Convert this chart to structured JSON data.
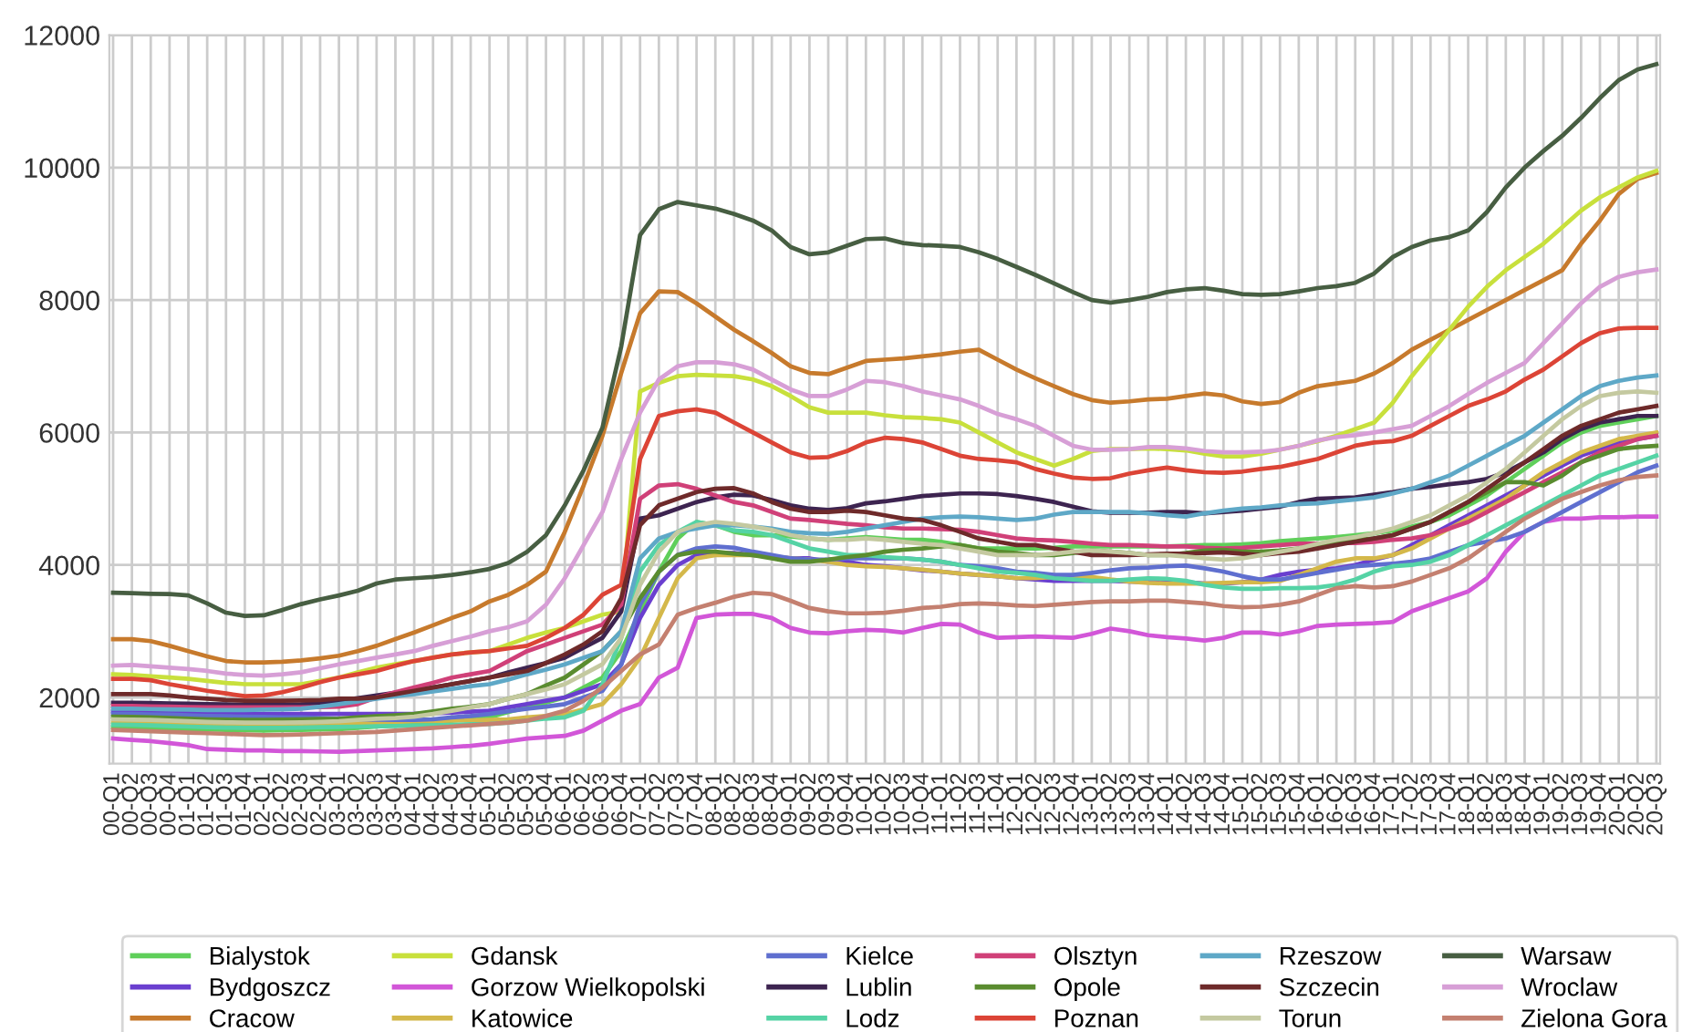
{
  "chart_data": {
    "type": "line",
    "categories": [
      "00-Q1",
      "00-Q2",
      "00-Q3",
      "00-Q4",
      "01-Q1",
      "01-Q2",
      "01-Q3",
      "01-Q4",
      "02-Q1",
      "02-Q2",
      "02-Q3",
      "02-Q4",
      "03-Q1",
      "03-Q2",
      "03-Q3",
      "03-Q4",
      "04-Q1",
      "04-Q2",
      "04-Q3",
      "04-Q4",
      "05-Q1",
      "05-Q2",
      "05-Q3",
      "05-Q4",
      "06-Q1",
      "06-Q2",
      "06-Q3",
      "06-Q4",
      "07-Q1",
      "07-Q2",
      "07-Q3",
      "07-Q4",
      "08-Q1",
      "08-Q2",
      "08-Q3",
      "08-Q4",
      "09-Q1",
      "09-Q2",
      "09-Q3",
      "09-Q4",
      "10-Q1",
      "10-Q2",
      "10-Q3",
      "10-Q4",
      "11-Q1",
      "11-Q2",
      "11-Q3",
      "11-Q4",
      "12-Q1",
      "12-Q2",
      "12-Q3",
      "12-Q4",
      "13-Q1",
      "13-Q2",
      "13-Q3",
      "13-Q4",
      "14-Q1",
      "14-Q2",
      "14-Q3",
      "14-Q4",
      "15-Q1",
      "15-Q2",
      "15-Q3",
      "15-Q4",
      "16-Q1",
      "16-Q2",
      "16-Q3",
      "16-Q4",
      "17-Q1",
      "17-Q2",
      "17-Q3",
      "17-Q4",
      "18-Q1",
      "18-Q2",
      "18-Q3",
      "18-Q4",
      "19-Q1",
      "19-Q2",
      "19-Q3",
      "19-Q4",
      "20-Q1",
      "20-Q2",
      "20-Q3"
    ],
    "ylim": [
      1000,
      12000
    ],
    "yticks": [
      2000,
      4000,
      6000,
      8000,
      10000,
      12000
    ],
    "grid": true,
    "legend": "bottom",
    "marker": "none",
    "line_style": "solid",
    "series": [
      {
        "name": "Bialystok",
        "color": "#5fcf5a",
        "values": [
          1550,
          1545,
          1540,
          1530,
          1520,
          1515,
          1510,
          1505,
          1500,
          1505,
          1510,
          1515,
          1520,
          1540,
          1560,
          1580,
          1600,
          1620,
          1650,
          1680,
          1700,
          1780,
          1850,
          1920,
          2000,
          2150,
          2300,
          2700,
          3300,
          3900,
          4400,
          4650,
          4600,
          4500,
          4450,
          4450,
          4430,
          4400,
          4380,
          4400,
          4420,
          4400,
          4380,
          4380,
          4350,
          4300,
          4250,
          4250,
          4250,
          4250,
          4260,
          4280,
          4280,
          4280,
          4280,
          4280,
          4280,
          4290,
          4300,
          4300,
          4310,
          4330,
          4360,
          4380,
          4400,
          4420,
          4450,
          4480,
          4520,
          4580,
          4650,
          4750,
          4900,
          5050,
          5250,
          5450,
          5650,
          5850,
          6000,
          6100,
          6150,
          6200,
          6250
        ]
      },
      {
        "name": "Bydgoszcz",
        "color": "#6a3fcf",
        "values": [
          1790,
          1790,
          1780,
          1770,
          1765,
          1760,
          1755,
          1750,
          1750,
          1750,
          1750,
          1750,
          1750,
          1750,
          1750,
          1750,
          1750,
          1760,
          1770,
          1785,
          1800,
          1850,
          1900,
          1950,
          2000,
          2100,
          2200,
          2500,
          3200,
          3700,
          4000,
          4150,
          4180,
          4180,
          4150,
          4130,
          4100,
          4100,
          4050,
          4050,
          4000,
          3980,
          3950,
          3920,
          3900,
          3870,
          3850,
          3830,
          3800,
          3780,
          3760,
          3760,
          3760,
          3760,
          3750,
          3740,
          3740,
          3740,
          3720,
          3720,
          3740,
          3780,
          3850,
          3900,
          3930,
          3950,
          4000,
          4080,
          4150,
          4300,
          4450,
          4600,
          4750,
          4900,
          5050,
          5200,
          5350,
          5500,
          5650,
          5750,
          5850,
          5900,
          5950
        ]
      },
      {
        "name": "Cracow",
        "color": "#c77a2c",
        "values": [
          2880,
          2880,
          2850,
          2780,
          2700,
          2620,
          2550,
          2530,
          2530,
          2540,
          2560,
          2590,
          2630,
          2700,
          2780,
          2880,
          2980,
          3090,
          3200,
          3300,
          3450,
          3550,
          3700,
          3900,
          4500,
          5200,
          5950,
          6900,
          7800,
          8130,
          8120,
          7950,
          7750,
          7550,
          7380,
          7200,
          7000,
          6900,
          6880,
          6980,
          7080,
          7100,
          7120,
          7150,
          7180,
          7220,
          7250,
          7100,
          6950,
          6820,
          6700,
          6580,
          6490,
          6450,
          6470,
          6500,
          6510,
          6550,
          6590,
          6560,
          6470,
          6430,
          6460,
          6600,
          6700,
          6740,
          6780,
          6890,
          7050,
          7250,
          7400,
          7550,
          7700,
          7850,
          8000,
          8150,
          8300,
          8450,
          8850,
          9200,
          9600,
          9830,
          9920
        ]
      },
      {
        "name": "Gdansk",
        "color": "#c8e03c",
        "values": [
          2350,
          2340,
          2320,
          2300,
          2280,
          2250,
          2220,
          2200,
          2200,
          2200,
          2200,
          2250,
          2300,
          2380,
          2450,
          2500,
          2550,
          2600,
          2650,
          2680,
          2700,
          2800,
          2900,
          2980,
          3050,
          3150,
          3250,
          3300,
          6620,
          6750,
          6850,
          6870,
          6860,
          6850,
          6800,
          6700,
          6550,
          6380,
          6300,
          6300,
          6300,
          6260,
          6230,
          6220,
          6200,
          6150,
          6000,
          5850,
          5700,
          5600,
          5500,
          5600,
          5720,
          5750,
          5750,
          5760,
          5750,
          5730,
          5680,
          5640,
          5640,
          5680,
          5740,
          5800,
          5870,
          5950,
          6050,
          6150,
          6450,
          6850,
          7200,
          7550,
          7900,
          8200,
          8450,
          8650,
          8850,
          9100,
          9350,
          9550,
          9700,
          9850,
          9950
        ]
      },
      {
        "name": "Gorzow Wielkopolski",
        "color": "#d256d8",
        "values": [
          1380,
          1360,
          1340,
          1310,
          1280,
          1220,
          1210,
          1200,
          1200,
          1190,
          1190,
          1185,
          1180,
          1190,
          1200,
          1210,
          1220,
          1230,
          1250,
          1270,
          1300,
          1340,
          1380,
          1400,
          1420,
          1500,
          1650,
          1800,
          1900,
          2300,
          2450,
          3200,
          3250,
          3260,
          3260,
          3200,
          3050,
          2980,
          2970,
          3000,
          3020,
          3010,
          2980,
          3050,
          3110,
          3100,
          2980,
          2900,
          2910,
          2920,
          2910,
          2900,
          2960,
          3040,
          3000,
          2940,
          2910,
          2890,
          2860,
          2900,
          2980,
          2980,
          2950,
          3000,
          3080,
          3100,
          3110,
          3120,
          3140,
          3300,
          3400,
          3500,
          3600,
          3800,
          4200,
          4500,
          4650,
          4700,
          4700,
          4720,
          4720,
          4730,
          4730
        ]
      },
      {
        "name": "Katowice",
        "color": "#d4b84a",
        "values": [
          1630,
          1625,
          1620,
          1610,
          1600,
          1590,
          1585,
          1580,
          1580,
          1580,
          1585,
          1590,
          1600,
          1610,
          1620,
          1630,
          1640,
          1645,
          1650,
          1655,
          1660,
          1670,
          1700,
          1720,
          1750,
          1820,
          1900,
          2200,
          2600,
          3200,
          3800,
          4100,
          4150,
          4150,
          4150,
          4130,
          4100,
          4080,
          4050,
          4000,
          3980,
          3970,
          3950,
          3930,
          3900,
          3870,
          3850,
          3830,
          3800,
          3800,
          3820,
          3830,
          3820,
          3780,
          3750,
          3730,
          3720,
          3720,
          3720,
          3730,
          3740,
          3740,
          3760,
          3850,
          3950,
          4050,
          4100,
          4100,
          4150,
          4250,
          4400,
          4550,
          4700,
          4850,
          5000,
          5200,
          5400,
          5550,
          5700,
          5800,
          5900,
          5950,
          6000
        ]
      },
      {
        "name": "Kielce",
        "color": "#5f6fcf",
        "values": [
          1750,
          1750,
          1745,
          1740,
          1730,
          1720,
          1715,
          1710,
          1705,
          1700,
          1700,
          1690,
          1680,
          1670,
          1665,
          1660,
          1660,
          1670,
          1700,
          1720,
          1750,
          1790,
          1830,
          1860,
          1900,
          2000,
          2100,
          2500,
          3400,
          3900,
          4150,
          4250,
          4280,
          4260,
          4200,
          4150,
          4100,
          4080,
          4080,
          4100,
          4100,
          4100,
          4100,
          4080,
          4050,
          4000,
          3980,
          3950,
          3900,
          3880,
          3850,
          3850,
          3880,
          3920,
          3950,
          3960,
          3980,
          3990,
          3950,
          3900,
          3830,
          3780,
          3780,
          3830,
          3880,
          3930,
          3980,
          4000,
          4020,
          4050,
          4100,
          4200,
          4300,
          4350,
          4400,
          4500,
          4650,
          4800,
          4950,
          5100,
          5250,
          5400,
          5500
        ]
      },
      {
        "name": "Lublin",
        "color": "#3d2450",
        "values": [
          1920,
          1920,
          1915,
          1910,
          1905,
          1900,
          1895,
          1890,
          1890,
          1890,
          1895,
          1910,
          1950,
          1990,
          2030,
          2070,
          2100,
          2150,
          2200,
          2250,
          2300,
          2380,
          2450,
          2520,
          2600,
          2750,
          2900,
          3300,
          4700,
          4750,
          4850,
          4950,
          5020,
          5060,
          5050,
          4980,
          4900,
          4850,
          4830,
          4860,
          4930,
          4960,
          5000,
          5040,
          5060,
          5080,
          5080,
          5070,
          5040,
          5000,
          4950,
          4880,
          4810,
          4790,
          4790,
          4790,
          4800,
          4800,
          4780,
          4800,
          4820,
          4850,
          4880,
          4950,
          5000,
          5010,
          5020,
          5060,
          5100,
          5150,
          5180,
          5220,
          5250,
          5300,
          5400,
          5550,
          5700,
          5900,
          6050,
          6150,
          6200,
          6250,
          6250
        ]
      },
      {
        "name": "Lodz",
        "color": "#55d3a5",
        "values": [
          1590,
          1585,
          1580,
          1570,
          1560,
          1550,
          1545,
          1540,
          1540,
          1540,
          1545,
          1550,
          1555,
          1560,
          1565,
          1570,
          1575,
          1580,
          1585,
          1595,
          1600,
          1620,
          1650,
          1680,
          1700,
          1800,
          2200,
          2900,
          3900,
          4300,
          4500,
          4650,
          4600,
          4520,
          4500,
          4450,
          4350,
          4250,
          4200,
          4150,
          4150,
          4120,
          4100,
          4080,
          4050,
          4000,
          3950,
          3900,
          3880,
          3850,
          3800,
          3780,
          3760,
          3760,
          3780,
          3800,
          3790,
          3760,
          3700,
          3660,
          3640,
          3640,
          3650,
          3650,
          3660,
          3700,
          3780,
          3900,
          3980,
          4000,
          4050,
          4150,
          4300,
          4450,
          4600,
          4750,
          4900,
          5050,
          5200,
          5350,
          5450,
          5550,
          5650
        ]
      },
      {
        "name": "Olsztyn",
        "color": "#d04078",
        "values": [
          1870,
          1870,
          1865,
          1860,
          1855,
          1850,
          1850,
          1850,
          1850,
          1850,
          1850,
          1855,
          1860,
          1900,
          2000,
          2080,
          2150,
          2220,
          2300,
          2350,
          2400,
          2550,
          2700,
          2800,
          2900,
          3000,
          3100,
          3400,
          5000,
          5200,
          5220,
          5150,
          5050,
          4950,
          4900,
          4800,
          4700,
          4680,
          4650,
          4620,
          4600,
          4570,
          4550,
          4550,
          4540,
          4530,
          4500,
          4450,
          4400,
          4380,
          4370,
          4350,
          4320,
          4300,
          4300,
          4290,
          4280,
          4280,
          4260,
          4250,
          4260,
          4280,
          4300,
          4320,
          4320,
          4330,
          4330,
          4350,
          4380,
          4400,
          4450,
          4550,
          4650,
          4800,
          4950,
          5100,
          5250,
          5400,
          5550,
          5700,
          5800,
          5900,
          5950
        ]
      },
      {
        "name": "Opole",
        "color": "#5a8c2f",
        "values": [
          1710,
          1705,
          1700,
          1690,
          1680,
          1670,
          1665,
          1660,
          1660,
          1665,
          1670,
          1675,
          1680,
          1700,
          1715,
          1730,
          1750,
          1790,
          1830,
          1860,
          1900,
          1980,
          2050,
          2180,
          2300,
          2500,
          2700,
          3000,
          3500,
          3900,
          4150,
          4200,
          4200,
          4170,
          4150,
          4100,
          4050,
          4050,
          4080,
          4120,
          4150,
          4200,
          4230,
          4250,
          4280,
          4300,
          4250,
          4200,
          4180,
          4150,
          4150,
          4180,
          4220,
          4200,
          4180,
          4150,
          4150,
          4180,
          4220,
          4230,
          4200,
          4200,
          4220,
          4250,
          4300,
          4350,
          4380,
          4400,
          4450,
          4550,
          4650,
          4800,
          4950,
          5100,
          5250,
          5250,
          5200,
          5350,
          5550,
          5650,
          5750,
          5780,
          5800
        ]
      },
      {
        "name": "Poznan",
        "color": "#dc4436",
        "values": [
          2280,
          2280,
          2260,
          2200,
          2150,
          2100,
          2060,
          2020,
          2030,
          2080,
          2150,
          2230,
          2300,
          2350,
          2400,
          2480,
          2550,
          2600,
          2650,
          2680,
          2700,
          2740,
          2780,
          2900,
          3050,
          3250,
          3550,
          3700,
          5600,
          6250,
          6320,
          6350,
          6300,
          6150,
          6000,
          5850,
          5700,
          5620,
          5630,
          5720,
          5850,
          5920,
          5900,
          5850,
          5750,
          5650,
          5600,
          5580,
          5550,
          5450,
          5380,
          5320,
          5300,
          5310,
          5380,
          5430,
          5470,
          5430,
          5400,
          5390,
          5410,
          5450,
          5480,
          5540,
          5600,
          5700,
          5800,
          5850,
          5870,
          5950,
          6100,
          6250,
          6400,
          6500,
          6620,
          6800,
          6950,
          7150,
          7350,
          7500,
          7570,
          7580,
          7580
        ]
      },
      {
        "name": "Rzeszow",
        "color": "#5ea8c7",
        "values": [
          1830,
          1830,
          1825,
          1820,
          1815,
          1810,
          1810,
          1810,
          1815,
          1820,
          1830,
          1860,
          1900,
          1940,
          1980,
          2020,
          2050,
          2090,
          2130,
          2170,
          2200,
          2270,
          2350,
          2420,
          2500,
          2600,
          2700,
          3000,
          4100,
          4400,
          4500,
          4550,
          4600,
          4600,
          4580,
          4550,
          4500,
          4480,
          4470,
          4500,
          4550,
          4600,
          4650,
          4700,
          4720,
          4730,
          4720,
          4700,
          4680,
          4700,
          4760,
          4800,
          4800,
          4800,
          4800,
          4780,
          4750,
          4730,
          4780,
          4820,
          4850,
          4870,
          4900,
          4920,
          4930,
          4960,
          4990,
          5020,
          5080,
          5150,
          5250,
          5350,
          5500,
          5650,
          5800,
          5950,
          6150,
          6350,
          6550,
          6700,
          6780,
          6830,
          6860
        ]
      },
      {
        "name": "Szczecin",
        "color": "#6e2a2a",
        "values": [
          2050,
          2050,
          2050,
          2030,
          2000,
          1980,
          1960,
          1950,
          1950,
          1950,
          1955,
          1960,
          1980,
          1980,
          2000,
          2050,
          2100,
          2150,
          2200,
          2250,
          2300,
          2350,
          2400,
          2520,
          2650,
          2800,
          3000,
          3500,
          4600,
          4900,
          5000,
          5100,
          5150,
          5160,
          5080,
          4950,
          4850,
          4800,
          4800,
          4820,
          4800,
          4750,
          4700,
          4680,
          4600,
          4500,
          4400,
          4350,
          4300,
          4300,
          4250,
          4200,
          4150,
          4150,
          4150,
          4160,
          4170,
          4170,
          4180,
          4190,
          4170,
          4150,
          4180,
          4200,
          4250,
          4300,
          4350,
          4400,
          4450,
          4550,
          4650,
          4800,
          4950,
          5150,
          5350,
          5550,
          5750,
          5950,
          6100,
          6200,
          6300,
          6350,
          6400
        ]
      },
      {
        "name": "Torun",
        "color": "#c4c9a0",
        "values": [
          1670,
          1665,
          1660,
          1650,
          1640,
          1630,
          1625,
          1620,
          1620,
          1620,
          1625,
          1630,
          1640,
          1660,
          1680,
          1690,
          1710,
          1750,
          1800,
          1850,
          1900,
          1980,
          2050,
          2120,
          2200,
          2350,
          2500,
          2900,
          3700,
          4200,
          4500,
          4600,
          4650,
          4620,
          4580,
          4530,
          4450,
          4400,
          4380,
          4380,
          4400,
          4380,
          4350,
          4320,
          4300,
          4250,
          4200,
          4150,
          4150,
          4150,
          4170,
          4200,
          4220,
          4200,
          4180,
          4150,
          4150,
          4130,
          4100,
          4080,
          4100,
          4150,
          4200,
          4250,
          4320,
          4380,
          4420,
          4480,
          4550,
          4650,
          4750,
          4900,
          5050,
          5250,
          5450,
          5700,
          5950,
          6200,
          6400,
          6550,
          6600,
          6620,
          6600
        ]
      },
      {
        "name": "Warsaw",
        "color": "#475e42",
        "values": [
          3580,
          3575,
          3565,
          3560,
          3540,
          3420,
          3280,
          3230,
          3240,
          3320,
          3410,
          3480,
          3540,
          3610,
          3720,
          3780,
          3800,
          3820,
          3850,
          3890,
          3940,
          4030,
          4200,
          4450,
          4900,
          5430,
          6070,
          7300,
          8980,
          9370,
          9480,
          9430,
          9380,
          9300,
          9200,
          9050,
          8800,
          8690,
          8720,
          8820,
          8920,
          8930,
          8860,
          8830,
          8820,
          8800,
          8720,
          8620,
          8500,
          8380,
          8250,
          8120,
          8000,
          7960,
          8000,
          8050,
          8120,
          8160,
          8180,
          8140,
          8090,
          8080,
          8090,
          8130,
          8180,
          8210,
          8260,
          8400,
          8650,
          8800,
          8900,
          8950,
          9050,
          9330,
          9700,
          10000,
          10250,
          10480,
          10750,
          11050,
          11320,
          11480,
          11560
        ]
      },
      {
        "name": "Wroclaw",
        "color": "#d79fd6",
        "values": [
          2480,
          2490,
          2470,
          2450,
          2430,
          2400,
          2360,
          2340,
          2330,
          2350,
          2380,
          2440,
          2500,
          2550,
          2600,
          2650,
          2700,
          2780,
          2850,
          2920,
          3000,
          3060,
          3150,
          3400,
          3800,
          4300,
          4800,
          5600,
          6300,
          6800,
          7000,
          7060,
          7060,
          7030,
          6950,
          6800,
          6650,
          6550,
          6550,
          6650,
          6780,
          6760,
          6700,
          6620,
          6560,
          6500,
          6400,
          6280,
          6200,
          6100,
          5950,
          5800,
          5740,
          5740,
          5750,
          5780,
          5780,
          5760,
          5720,
          5700,
          5700,
          5710,
          5740,
          5800,
          5880,
          5930,
          5960,
          6000,
          6050,
          6100,
          6250,
          6400,
          6580,
          6750,
          6900,
          7050,
          7350,
          7650,
          7950,
          8200,
          8350,
          8420,
          8460
        ]
      },
      {
        "name": "Zielona Gora",
        "color": "#c48070",
        "values": [
          1510,
          1500,
          1490,
          1480,
          1470,
          1460,
          1450,
          1440,
          1430,
          1435,
          1440,
          1450,
          1460,
          1470,
          1480,
          1500,
          1520,
          1540,
          1560,
          1580,
          1600,
          1620,
          1650,
          1720,
          1800,
          1950,
          2150,
          2400,
          2650,
          2800,
          3250,
          3350,
          3430,
          3520,
          3580,
          3560,
          3460,
          3350,
          3300,
          3270,
          3270,
          3280,
          3310,
          3350,
          3370,
          3410,
          3420,
          3410,
          3390,
          3380,
          3400,
          3420,
          3440,
          3450,
          3450,
          3460,
          3460,
          3440,
          3420,
          3380,
          3360,
          3370,
          3400,
          3450,
          3550,
          3650,
          3680,
          3660,
          3680,
          3750,
          3850,
          3950,
          4100,
          4300,
          4500,
          4700,
          4850,
          5000,
          5100,
          5200,
          5280,
          5330,
          5350
        ]
      }
    ]
  }
}
